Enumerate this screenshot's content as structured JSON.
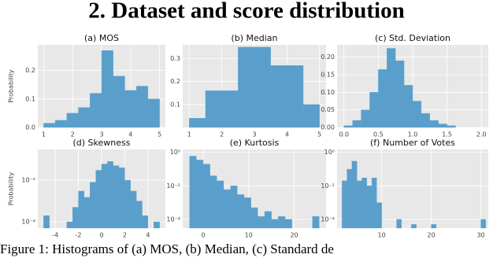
{
  "heading": "2.  Dataset and score distribution",
  "caption": "Figure 1: Histograms of (a) MOS, (b) Median, (c) Standard de",
  "chart_data": [
    {
      "type": "histogram",
      "title": "(a) MOS",
      "ylabel": "Probability",
      "color": "#5a9fcb",
      "grid": true,
      "yscale": "linear",
      "bins": [
        1.0,
        1.4,
        1.8,
        2.2,
        2.6,
        3.0,
        3.4,
        3.8,
        4.2,
        4.6,
        5.0
      ],
      "values": [
        0.015,
        0.025,
        0.05,
        0.07,
        0.12,
        0.27,
        0.18,
        0.13,
        0.145,
        0.1
      ],
      "xlim": [
        0.8,
        5.2
      ],
      "ylim": [
        0,
        0.29
      ],
      "xticks": [
        1,
        2,
        3,
        4,
        5
      ],
      "yticks": [
        {
          "value": 0,
          "label": "0.0"
        },
        0.1,
        0.2
      ]
    },
    {
      "type": "histogram",
      "title": "(b) Median",
      "color": "#5a9fcb",
      "grid": true,
      "yscale": "linear",
      "bins": [
        1.0,
        1.5,
        2.5,
        3.5,
        4.5,
        5.0
      ],
      "values": [
        0.04,
        0.16,
        0.35,
        0.27,
        0.1
      ],
      "xlim": [
        0.8,
        5.2
      ],
      "ylim": [
        0,
        0.36
      ],
      "xticks": [
        1,
        2,
        3,
        4,
        5
      ],
      "yticks": [
        0.1,
        0.2,
        0.3
      ]
    },
    {
      "type": "histogram",
      "title": "(c) Std. Deviation",
      "color": "#5a9fcb",
      "grid": true,
      "yscale": "linear",
      "bins": [
        0.0,
        0.125,
        0.25,
        0.375,
        0.5,
        0.625,
        0.75,
        0.875,
        1.0,
        1.125,
        1.25,
        1.375,
        1.5,
        1.625
      ],
      "values": [
        0.005,
        0.02,
        0.05,
        0.1,
        0.165,
        0.225,
        0.19,
        0.12,
        0.075,
        0.04,
        0.02,
        0.01,
        0.005
      ],
      "xlim": [
        -0.1,
        2.1
      ],
      "ylim": [
        0,
        0.235
      ],
      "xticks": [
        {
          "value": 0,
          "label": "0.0"
        },
        0.5,
        {
          "value": 1,
          "label": "1.0"
        },
        1.5,
        {
          "value": 2,
          "label": "2.0"
        }
      ],
      "yticks": [
        {
          "value": 0,
          "label": "0.00"
        },
        0.05,
        {
          "value": 0.1,
          "label": "0.10"
        },
        0.15,
        {
          "value": 0.2,
          "label": "0.20"
        }
      ]
    },
    {
      "type": "histogram",
      "title": "(d) Skewness",
      "ylabel": "Probability",
      "color": "#5a9fcb",
      "grid": true,
      "yscale": "log",
      "bins": [
        -5,
        -4.5,
        -4,
        -3.5,
        -3,
        -2.5,
        -2,
        -1.5,
        -1,
        -0.5,
        0,
        0.5,
        1,
        1.5,
        2,
        2.5,
        3,
        3.5,
        4,
        4.5,
        5
      ],
      "values": [
        0.0002,
        0,
        0,
        0,
        0.0001,
        0.0005,
        0.003,
        0.0015,
        0.008,
        0.03,
        0.06,
        0.08,
        0.05,
        0.04,
        0.01,
        0.003,
        0.001,
        0.0002,
        0,
        0.0001
      ],
      "xlim": [
        -5.5,
        5.5
      ],
      "ylim": [
        5e-05,
        0.3
      ],
      "xticks": [
        -4,
        -2,
        0,
        2,
        4
      ],
      "yticks": [
        {
          "value": 0.01,
          "label": "10⁻²"
        },
        {
          "value": 0.0001,
          "label": "10⁻⁴"
        }
      ]
    },
    {
      "type": "histogram",
      "title": "(e) Kurtosis",
      "color": "#5a9fcb",
      "grid": true,
      "yscale": "log",
      "bins": [
        -3,
        -1.5,
        0,
        1.5,
        3,
        4.5,
        6,
        7.5,
        9,
        10.5,
        12,
        13.5,
        15,
        16.5,
        18,
        19.5,
        21,
        22.5,
        24,
        25.5
      ],
      "values": [
        0.6,
        0.35,
        0.2,
        0.04,
        0.02,
        0.006,
        0.01,
        0.003,
        0.002,
        0.0005,
        0.00015,
        0.0003,
        0.0001,
        0.00015,
        0.0001,
        0,
        0,
        0,
        0.00015
      ],
      "xlim": [
        -4.5,
        27
      ],
      "ylim": [
        3e-05,
        1.5
      ],
      "xticks": [
        0,
        10,
        20
      ],
      "yticks": [
        {
          "value": 1,
          "label": "10⁰"
        },
        {
          "value": 0.01,
          "label": "10⁻²"
        },
        {
          "value": 0.0001,
          "label": "10⁻⁴"
        }
      ]
    },
    {
      "type": "histogram",
      "title": "(f) Number of Votes",
      "color": "#5a9fcb",
      "grid": true,
      "yscale": "log",
      "bins": [
        2,
        3,
        4,
        5,
        6,
        7,
        8,
        9,
        10,
        11,
        12,
        13,
        14,
        15,
        16,
        17,
        18,
        19,
        20,
        21,
        22,
        23,
        24,
        25,
        26,
        27,
        28,
        29,
        30,
        31
      ],
      "values": [
        0.02,
        0.1,
        0.3,
        0.02,
        0.03,
        0.01,
        0.03,
        0.001,
        0,
        0,
        0,
        0.0001,
        0,
        0,
        5e-05,
        0,
        0,
        0,
        5e-05,
        0,
        0,
        0,
        0,
        0,
        0,
        0,
        0,
        0,
        0.0001
      ],
      "xlim": [
        1,
        31.5
      ],
      "ylim": [
        3e-05,
        1.5
      ],
      "xticks": [
        10,
        20,
        30
      ],
      "yticks": [
        {
          "value": 1,
          "label": "10⁰"
        },
        {
          "value": 0.01,
          "label": "10⁻²"
        },
        {
          "value": 0.0001,
          "label": "10⁻⁴"
        }
      ]
    }
  ]
}
